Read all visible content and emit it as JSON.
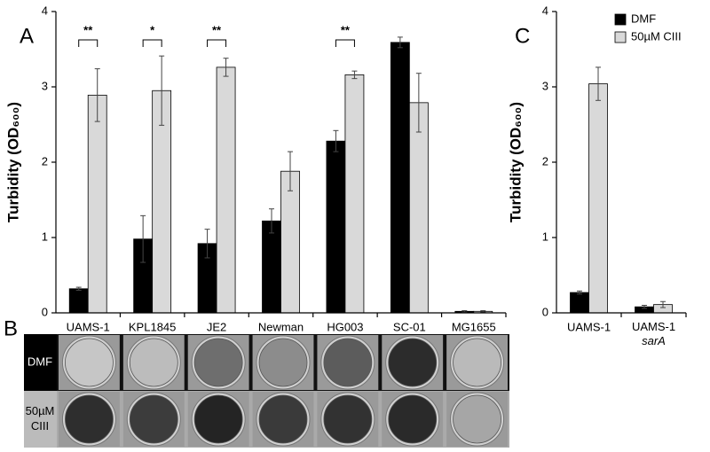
{
  "chart_data": [
    {
      "type": "bar",
      "panel_label": "A",
      "ylabel": "Turbidity (OD₆₀₀)",
      "categories": [
        "UAMS-1",
        "KPL1845",
        "JE2",
        "Newman",
        "HG003",
        "SC-01",
        "MG1655"
      ],
      "series": [
        {
          "name": "DMF",
          "color": "#000000",
          "values": [
            0.32,
            0.98,
            0.92,
            1.22,
            2.28,
            3.59,
            0.02
          ],
          "errors": [
            0.02,
            0.31,
            0.19,
            0.16,
            0.14,
            0.07,
            0.01
          ]
        },
        {
          "name": "50µM CIII",
          "color": "#d9d9d9",
          "values": [
            2.89,
            2.95,
            3.26,
            1.88,
            3.16,
            2.79,
            0.02
          ],
          "errors": [
            0.35,
            0.46,
            0.12,
            0.26,
            0.05,
            0.39,
            0.01
          ]
        }
      ],
      "ylim": [
        0,
        4
      ],
      "yticks": [
        0,
        1,
        2,
        3,
        4
      ],
      "annotations": [
        {
          "category": "UAMS-1",
          "text": "**"
        },
        {
          "category": "KPL1845",
          "text": "*"
        },
        {
          "category": "JE2",
          "text": "**"
        },
        {
          "category": "HG003",
          "text": "**"
        }
      ]
    },
    {
      "type": "bar",
      "panel_label": "C",
      "ylabel": "Turbidity (OD₆₀₀)",
      "categories": [
        "UAMS-1",
        "UAMS-1 sarA"
      ],
      "series": [
        {
          "name": "DMF",
          "color": "#000000",
          "values": [
            0.27,
            0.08
          ],
          "errors": [
            0.02,
            0.02
          ]
        },
        {
          "name": "50µM CIII",
          "color": "#d9d9d9",
          "values": [
            3.04,
            0.11
          ],
          "errors": [
            0.22,
            0.04
          ]
        }
      ],
      "ylim": [
        0,
        4
      ],
      "yticks": [
        0,
        1,
        2,
        3,
        4
      ],
      "legend": "upper right"
    }
  ],
  "panel_b": {
    "label": "B",
    "rows": [
      "DMF",
      "50µM CIII"
    ]
  }
}
